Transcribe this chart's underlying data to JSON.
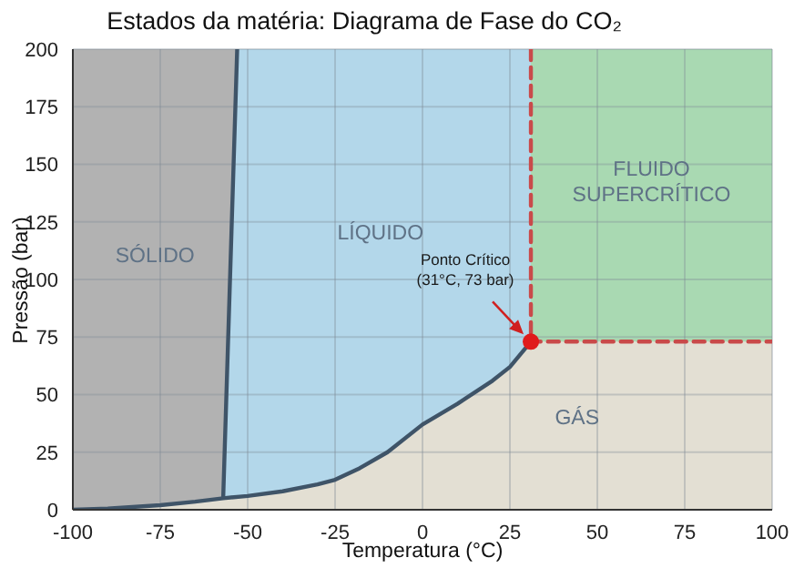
{
  "chart_data": {
    "type": "line",
    "title": "Estados da matéria: Diagrama de Fase do CO₂",
    "xlabel": "Temperatura (°C)",
    "ylabel": "Pressão (bar)",
    "xlim": [
      -100,
      100
    ],
    "xticks": [
      -100,
      -75,
      -50,
      -25,
      0,
      25,
      50,
      75,
      100
    ],
    "ylim": [
      0,
      200
    ],
    "yticks": [
      0,
      25,
      50,
      75,
      100,
      125,
      150,
      175,
      200
    ],
    "grid": true,
    "series": [
      {
        "type": "area",
        "color": "#b2b2b2",
        "x": [
          -100,
          -53
        ],
        "values": [
          200,
          200
        ]
      },
      {
        "type": "area",
        "color": "#b3d7ea",
        "x": [
          -57,
          -53,
          31
        ],
        "values": [
          5,
          200,
          200
        ]
      },
      {
        "type": "area",
        "color": "#a9d9b2",
        "x": [
          31,
          100
        ],
        "values": [
          200,
          200
        ]
      },
      {
        "type": "area",
        "color": "#e3dfd3",
        "x": [
          -100,
          -90,
          -75,
          -65,
          -57,
          -50,
          -40,
          -30,
          -25,
          -18,
          -10,
          0,
          10,
          20,
          25,
          31,
          100
        ],
        "values": [
          0,
          0.5,
          2,
          3.5,
          5,
          6,
          8,
          11,
          13,
          18,
          25,
          37,
          46,
          56,
          62,
          73,
          73
        ]
      },
      {
        "type": "line",
        "color": "#3f5468",
        "x": [
          -100,
          -90,
          -75,
          -65,
          -57,
          -53,
          -57,
          -50,
          -40,
          -30,
          -25,
          -18,
          -10,
          0,
          10,
          20,
          25,
          31
        ],
        "values": [
          0,
          0.5,
          2,
          3.5,
          5,
          200,
          5,
          6,
          8,
          11,
          13,
          18,
          25,
          37,
          46,
          56,
          62,
          73
        ]
      },
      {
        "type": "line",
        "color": "#c94a4a",
        "line_style": "dashed",
        "x": [
          31,
          31,
          100
        ],
        "values": [
          200,
          73,
          73
        ]
      },
      {
        "type": "scatter",
        "color": "#e01b1b",
        "marker": "circle",
        "x": [
          31
        ],
        "values": [
          73
        ]
      }
    ],
    "annotations": [
      "SÓLIDO",
      "LÍQUIDO",
      "FLUIDO\nSUPERCRÍTICO",
      "GÁS",
      {
        "text": "Ponto Crítico\n(31°C, 73 bar)",
        "x": 31,
        "y": 73
      }
    ]
  }
}
